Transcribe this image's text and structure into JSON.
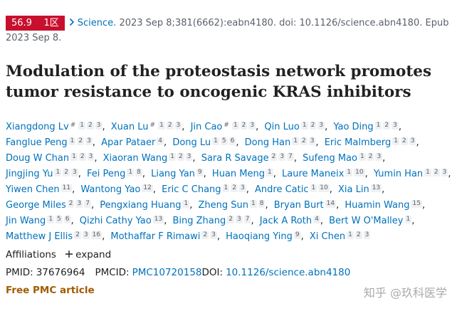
{
  "header": {
    "metrics": {
      "impact": "56.9",
      "zone": "1区"
    },
    "journal": "Science.",
    "citation": "2023 Sep 8;381(6662):eabn4180. doi: 10.1126/science.abn4180. Epub 2023 Sep 8."
  },
  "title": "Modulation of the proteostasis network promotes tumor resistance to oncogenic KRAS inhibitors",
  "authors": [
    {
      "name": "Xiangdong Lv",
      "equal": "#",
      "affs": [
        "1",
        "2",
        "3"
      ]
    },
    {
      "name": "Xuan Lu",
      "equal": "#",
      "affs": [
        "1",
        "2",
        "3"
      ]
    },
    {
      "name": "Jin Cao",
      "equal": "#",
      "affs": [
        "1",
        "2",
        "3"
      ]
    },
    {
      "name": "Qin Luo",
      "affs": [
        "1",
        "2",
        "3"
      ]
    },
    {
      "name": "Yao Ding",
      "affs": [
        "1",
        "2",
        "3"
      ]
    },
    {
      "name": "Fanglue Peng",
      "affs": [
        "1",
        "2",
        "3"
      ]
    },
    {
      "name": "Apar Pataer",
      "affs": [
        "4"
      ]
    },
    {
      "name": "Dong Lu",
      "affs": [
        "1",
        "5",
        "6"
      ]
    },
    {
      "name": "Dong Han",
      "affs": [
        "1",
        "2",
        "3"
      ]
    },
    {
      "name": "Eric Malmberg",
      "affs": [
        "1",
        "2",
        "3"
      ]
    },
    {
      "name": "Doug W Chan",
      "affs": [
        "1",
        "2",
        "3"
      ]
    },
    {
      "name": "Xiaoran Wang",
      "affs": [
        "1",
        "2",
        "3"
      ]
    },
    {
      "name": "Sara R Savage",
      "affs": [
        "2",
        "3",
        "7"
      ]
    },
    {
      "name": "Sufeng Mao",
      "affs": [
        "1",
        "2",
        "3"
      ]
    },
    {
      "name": "Jingjing Yu",
      "affs": [
        "1",
        "2",
        "3"
      ]
    },
    {
      "name": "Fei Peng",
      "affs": [
        "1",
        "8"
      ]
    },
    {
      "name": "Liang Yan",
      "affs": [
        "9"
      ]
    },
    {
      "name": "Huan Meng",
      "affs": [
        "1"
      ]
    },
    {
      "name": "Laure Maneix",
      "affs": [
        "1",
        "10"
      ]
    },
    {
      "name": "Yumin Han",
      "affs": [
        "1",
        "2",
        "3"
      ]
    },
    {
      "name": "Yiwen Chen",
      "affs": [
        "11"
      ]
    },
    {
      "name": "Wantong Yao",
      "affs": [
        "12"
      ]
    },
    {
      "name": "Eric C Chang",
      "affs": [
        "1",
        "2",
        "3"
      ]
    },
    {
      "name": "Andre Catic",
      "affs": [
        "1",
        "10"
      ]
    },
    {
      "name": "Xia Lin",
      "affs": [
        "13"
      ]
    },
    {
      "name": "George Miles",
      "affs": [
        "2",
        "3",
        "7"
      ]
    },
    {
      "name": "Pengxiang Huang",
      "affs": [
        "1"
      ]
    },
    {
      "name": "Zheng Sun",
      "affs": [
        "1",
        "8"
      ]
    },
    {
      "name": "Bryan Burt",
      "affs": [
        "14"
      ]
    },
    {
      "name": "Huamin Wang",
      "affs": [
        "15"
      ]
    },
    {
      "name": "Jin Wang",
      "affs": [
        "1",
        "5",
        "6"
      ]
    },
    {
      "name": "Qizhi Cathy Yao",
      "affs": [
        "13"
      ]
    },
    {
      "name": "Bing Zhang",
      "affs": [
        "2",
        "3",
        "7"
      ]
    },
    {
      "name": "Jack A Roth",
      "affs": [
        "4"
      ]
    },
    {
      "name": "Bert W O'Malley",
      "affs": [
        "1"
      ]
    },
    {
      "name": "Matthew J Ellis",
      "affs": [
        "2",
        "3",
        "16"
      ]
    },
    {
      "name": "Mothaffar F Rimawi",
      "affs": [
        "2",
        "3"
      ]
    },
    {
      "name": "Haoqiang Ying",
      "affs": [
        "9"
      ]
    },
    {
      "name": "Xi Chen",
      "affs": [
        "1",
        "2",
        "3"
      ]
    }
  ],
  "affiliations": {
    "label": "Affiliations",
    "toggle": "expand"
  },
  "ids": {
    "pmid_label": "PMID:",
    "pmid": "37676964",
    "pmcid_label": "PMCID:",
    "pmcid": "PMC10720158",
    "doi_label": "DOI:",
    "doi": "10.1126/science.abn4180"
  },
  "free": "Free PMC article",
  "watermark": "知乎 @玖科医学"
}
